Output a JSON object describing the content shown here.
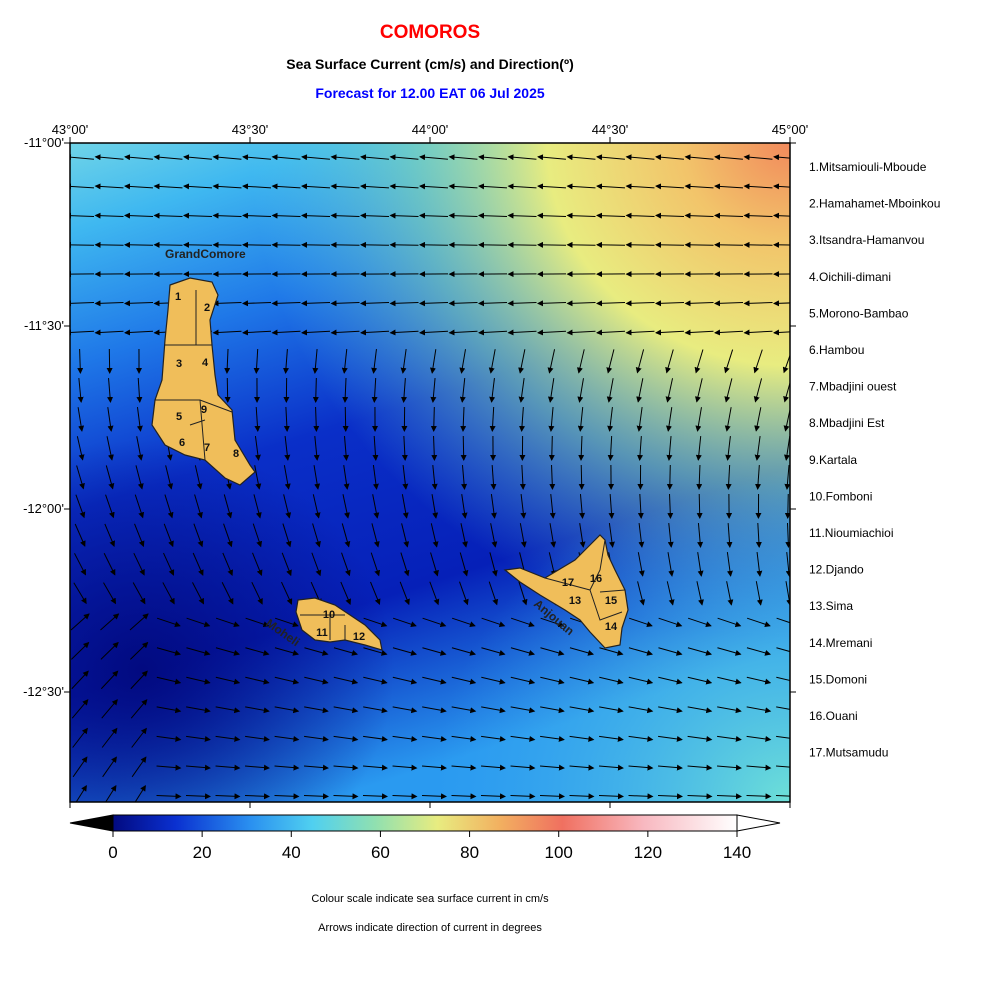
{
  "header": {
    "title": "COMOROS",
    "subtitle": "Sea Surface Current (cm/s) and Direction(º)",
    "forecast": "Forecast for  12.00 EAT 06 Jul 2025"
  },
  "map": {
    "lon_labels": [
      "43°00'",
      "43°30'",
      "44°00'",
      "44°30'",
      "45°00'"
    ],
    "lat_labels": [
      "-11°00'",
      "-11°30'",
      "-12°00'",
      "-12°30'"
    ],
    "island_names": [
      "GrandComore",
      "Moheli",
      "Anjouan"
    ],
    "region_numbers": [
      "1",
      "2",
      "3",
      "4",
      "5",
      "6",
      "7",
      "8",
      "9",
      "10",
      "11",
      "12",
      "13",
      "14",
      "15",
      "16",
      "17"
    ]
  },
  "legend": [
    "1.Mitsamiouli-Mboude",
    "2.Hamahamet-Mboinkou",
    "3.Itsandra-Hamanvou",
    "4.Oichili-dimani",
    "5.Morono-Bambao",
    "6.Hambou",
    "7.Mbadjini ouest",
    "8.Mbadjini Est",
    "9.Kartala",
    "10.Fomboni",
    "11.Nioumiachioi",
    "12.Djando",
    "13.Sima",
    "14.Mremani",
    "15.Domoni",
    "16.Ouani",
    "17.Mutsamudu"
  ],
  "colorbar": {
    "range": [
      0,
      140
    ],
    "ticks": [
      0,
      20,
      40,
      60,
      80,
      100,
      120,
      140
    ]
  },
  "notes": [
    "Colour scale indicate sea surface current in cm/s",
    "Arrows indicate direction of current in degrees"
  ]
}
